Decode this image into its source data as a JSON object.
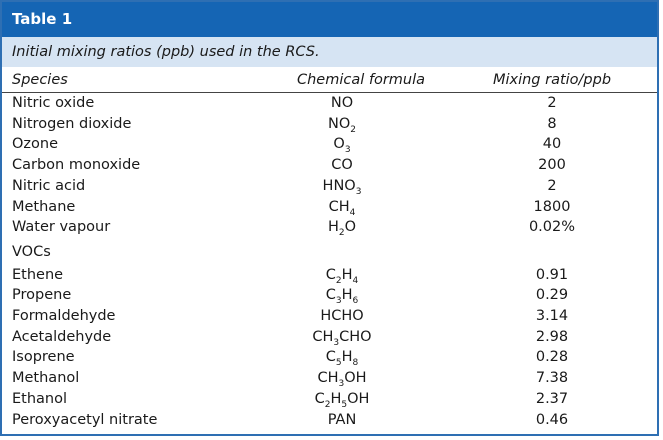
{
  "table": {
    "title": "Table 1",
    "caption": "Initial mixing ratios (ppb) used in the RCS.",
    "headers": {
      "species": "Species",
      "formula": "Chemical formula",
      "ratio": "Mixing ratio/ppb"
    },
    "rows": [
      {
        "species": "Nitric oxide",
        "formula": [
          "NO"
        ],
        "ratio": "2"
      },
      {
        "species": "Nitrogen dioxide",
        "formula": [
          "NO",
          "2"
        ],
        "ratio": "8"
      },
      {
        "species": "Ozone",
        "formula": [
          "O",
          "3"
        ],
        "ratio": "40"
      },
      {
        "species": "Carbon monoxide",
        "formula": [
          "CO"
        ],
        "ratio": "200"
      },
      {
        "species": "Nitric acid",
        "formula": [
          "HNO",
          "3"
        ],
        "ratio": "2"
      },
      {
        "species": "Methane",
        "formula": [
          "CH",
          "4"
        ],
        "ratio": "1800"
      },
      {
        "species": "Water vapour",
        "formula": [
          "H",
          "2",
          "O"
        ],
        "ratio": "0.02%"
      }
    ],
    "voc_heading": "VOCs",
    "voc_rows": [
      {
        "species": "Ethene",
        "formula": [
          "C",
          "2",
          "H",
          "4"
        ],
        "ratio": "0.91"
      },
      {
        "species": "Propene",
        "formula": [
          "C",
          "3",
          "H",
          "6"
        ],
        "ratio": "0.29"
      },
      {
        "species": "Formaldehyde",
        "formula": [
          "HCHO"
        ],
        "ratio": "3.14"
      },
      {
        "species": "Acetaldehyde",
        "formula": [
          "CH",
          "3",
          "CHO"
        ],
        "ratio": "2.98"
      },
      {
        "species": "Isoprene",
        "formula": [
          "C",
          "5",
          "H",
          "8"
        ],
        "ratio": "0.28"
      },
      {
        "species": "Methanol",
        "formula": [
          "CH",
          "3",
          "OH"
        ],
        "ratio": "7.38"
      },
      {
        "species": "Ethanol",
        "formula": [
          "C",
          "2",
          "H",
          "5",
          "OH"
        ],
        "ratio": "2.37"
      },
      {
        "species": "Peroxyacetyl nitrate",
        "formula": [
          "PAN"
        ],
        "ratio": "0.46"
      }
    ],
    "colors": {
      "title_bar": "#1565b4",
      "caption_bg": "#d6e4f3",
      "border": "#2e6fb3"
    }
  }
}
